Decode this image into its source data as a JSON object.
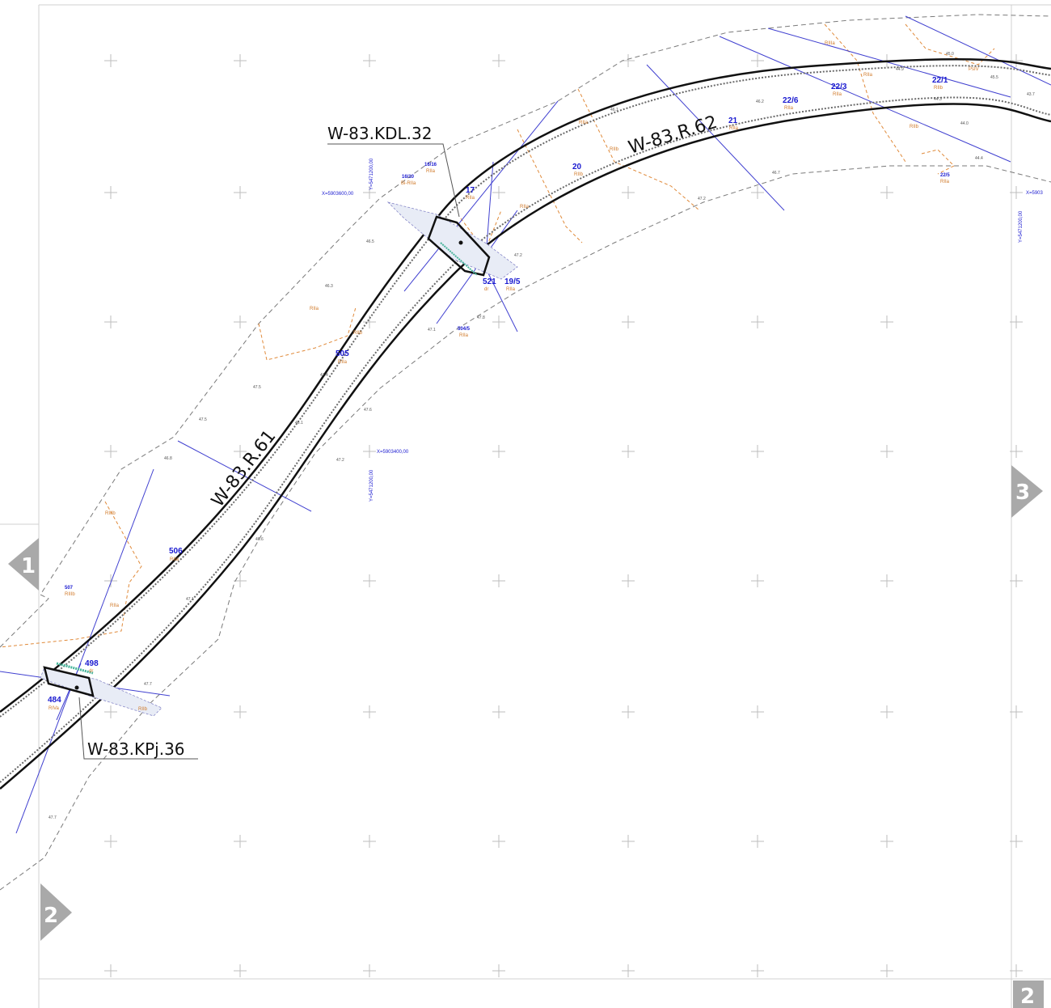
{
  "callouts": {
    "kdl": "W-83.KDL.32",
    "kpj": "W-83.KPj.36"
  },
  "road_labels": {
    "r61": "W-83.R.61",
    "r62": "W-83.R.62"
  },
  "parcels": [
    {
      "id": "p1",
      "label": "505",
      "use": "RIIa"
    },
    {
      "id": "p2",
      "label": "506",
      "use": "RIIa"
    },
    {
      "id": "p3",
      "label": "498",
      "use": "dr"
    },
    {
      "id": "p4",
      "label": "484",
      "use": "RIVa"
    },
    {
      "id": "p5",
      "label": "507",
      "use": "RIIIb"
    },
    {
      "id": "p6",
      "label": "17",
      "use": "RIIa"
    },
    {
      "id": "p7",
      "label": "16/10",
      "use": "Bi-RIIa"
    },
    {
      "id": "p8",
      "label": "16/16",
      "use": "RIIa"
    },
    {
      "id": "p9",
      "label": "20",
      "use": "RIIb"
    },
    {
      "id": "p10",
      "label": "21",
      "use": "RIIa"
    },
    {
      "id": "p11",
      "label": "22/6",
      "use": "RIIa"
    },
    {
      "id": "p12",
      "label": "22/3",
      "use": "RIIa"
    },
    {
      "id": "p13",
      "label": "22/1",
      "use": "RIIb"
    },
    {
      "id": "p14",
      "label": "19/5",
      "use": "RIIa"
    },
    {
      "id": "p15",
      "label": "521",
      "use": "dr"
    },
    {
      "id": "p16",
      "label": "504/5",
      "use": "RIIa"
    },
    {
      "id": "p17",
      "label": "22/5",
      "use": "RIIa"
    }
  ],
  "land_use_labels": [
    "RIIa",
    "RIIb",
    "RIIIb",
    "RIIa",
    "RIIb",
    "RIIa",
    "RIIb",
    "RIIa",
    "PsIV",
    "RIIIa",
    "RIIa",
    "RIIb"
  ],
  "elevations": [
    "46.5",
    "46.3",
    "47.5",
    "47.4",
    "47.5",
    "46.8",
    "46.1",
    "47.1",
    "47.2",
    "47.8",
    "47.6",
    "47.7",
    "44.3",
    "43.7",
    "44.0",
    "44.4",
    "45.0",
    "46.1",
    "46.2",
    "46.7",
    "47.2",
    "44.9",
    "45.5",
    "46.6",
    "47.1",
    "47.2",
    "47.7"
  ],
  "coordinates": {
    "x_upper": "X=5903600,00",
    "y_upper": "Y=5471200,00",
    "x_mid": "X=5903400,00",
    "y_mid": "Y=5471200,00",
    "x_right": "X=5903",
    "y_right": "Y=5471200,00"
  },
  "navigation": {
    "prev_sheet": "1",
    "next_sheet": "3",
    "down_sheet_left": "2",
    "down_sheet_corner": "2"
  },
  "colors": {
    "road": "#111111",
    "parcel_boundary": "#3030c8",
    "land_use_boundary": "#e08a3a",
    "right_of_way": "#7a7a7a",
    "nav_arrow": "#a9a9a9",
    "culvert_fill": "#46b49a"
  }
}
